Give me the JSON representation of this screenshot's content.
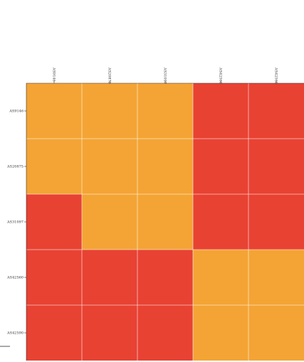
{
  "chart_data": {
    "type": "heatmap",
    "title": "",
    "xlabel": "",
    "ylabel": "",
    "x_categories": [
      "AS9146",
      "AS20875",
      "AS31097",
      "AS42560",
      "AS42560"
    ],
    "y_categories": [
      "AS9146",
      "AS20875",
      "AS31097",
      "AS42560",
      "AS42590"
    ],
    "values": [
      [
        1,
        1,
        1,
        0,
        0
      ],
      [
        1,
        1,
        1,
        0,
        0
      ],
      [
        0,
        1,
        1,
        0,
        0
      ],
      [
        0,
        0,
        0,
        1,
        1
      ],
      [
        0,
        0,
        0,
        1,
        1
      ]
    ],
    "colors": {
      "0": "#e84233",
      "1": "#f4a434"
    },
    "grid": true,
    "legend": "none"
  }
}
